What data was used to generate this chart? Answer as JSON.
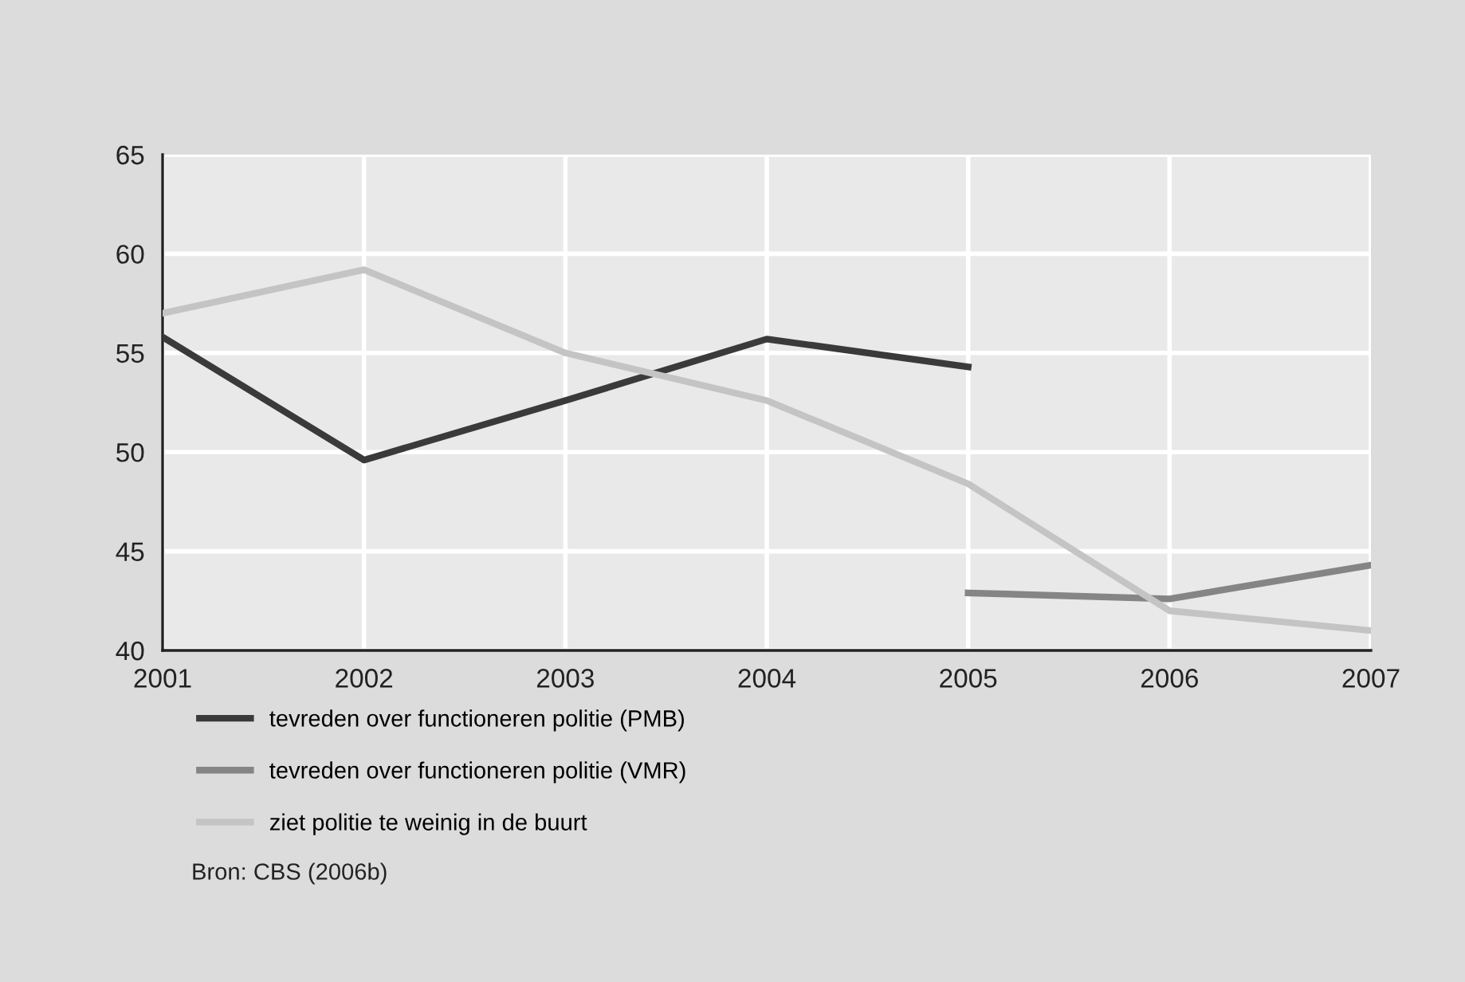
{
  "chart_data": {
    "type": "line",
    "xlim": [
      2001,
      2007
    ],
    "xticks": [
      2001,
      2002,
      2003,
      2004,
      2005,
      2006,
      2007
    ],
    "ylim": [
      40,
      65
    ],
    "yticks": [
      40,
      45,
      50,
      55,
      60,
      65
    ],
    "grid": true,
    "legend": "bottom",
    "marker": "none",
    "line_style": "solid",
    "series": [
      {
        "name": "tevreden over functioneren politie (PMB)",
        "color": "#3a3a3a",
        "x": [
          2001,
          2002,
          2003,
          2004,
          2005
        ],
        "values": [
          55.8,
          49.6,
          52.6,
          55.7,
          54.3
        ]
      },
      {
        "name": "tevreden over functioneren politie (VMR)",
        "color": "#858585",
        "x": [
          2005,
          2006,
          2007
        ],
        "values": [
          42.9,
          42.6,
          44.3
        ]
      },
      {
        "name": "ziet politie te weinig in de buurt",
        "color": "#c4c4c4",
        "x": [
          2001,
          2002,
          2003,
          2004,
          2005,
          2006,
          2007
        ],
        "values": [
          57.0,
          59.2,
          55.0,
          52.6,
          48.4,
          42.0,
          41.0
        ]
      }
    ],
    "annotations": [
      "Bron: CBS (2006b)"
    ]
  }
}
